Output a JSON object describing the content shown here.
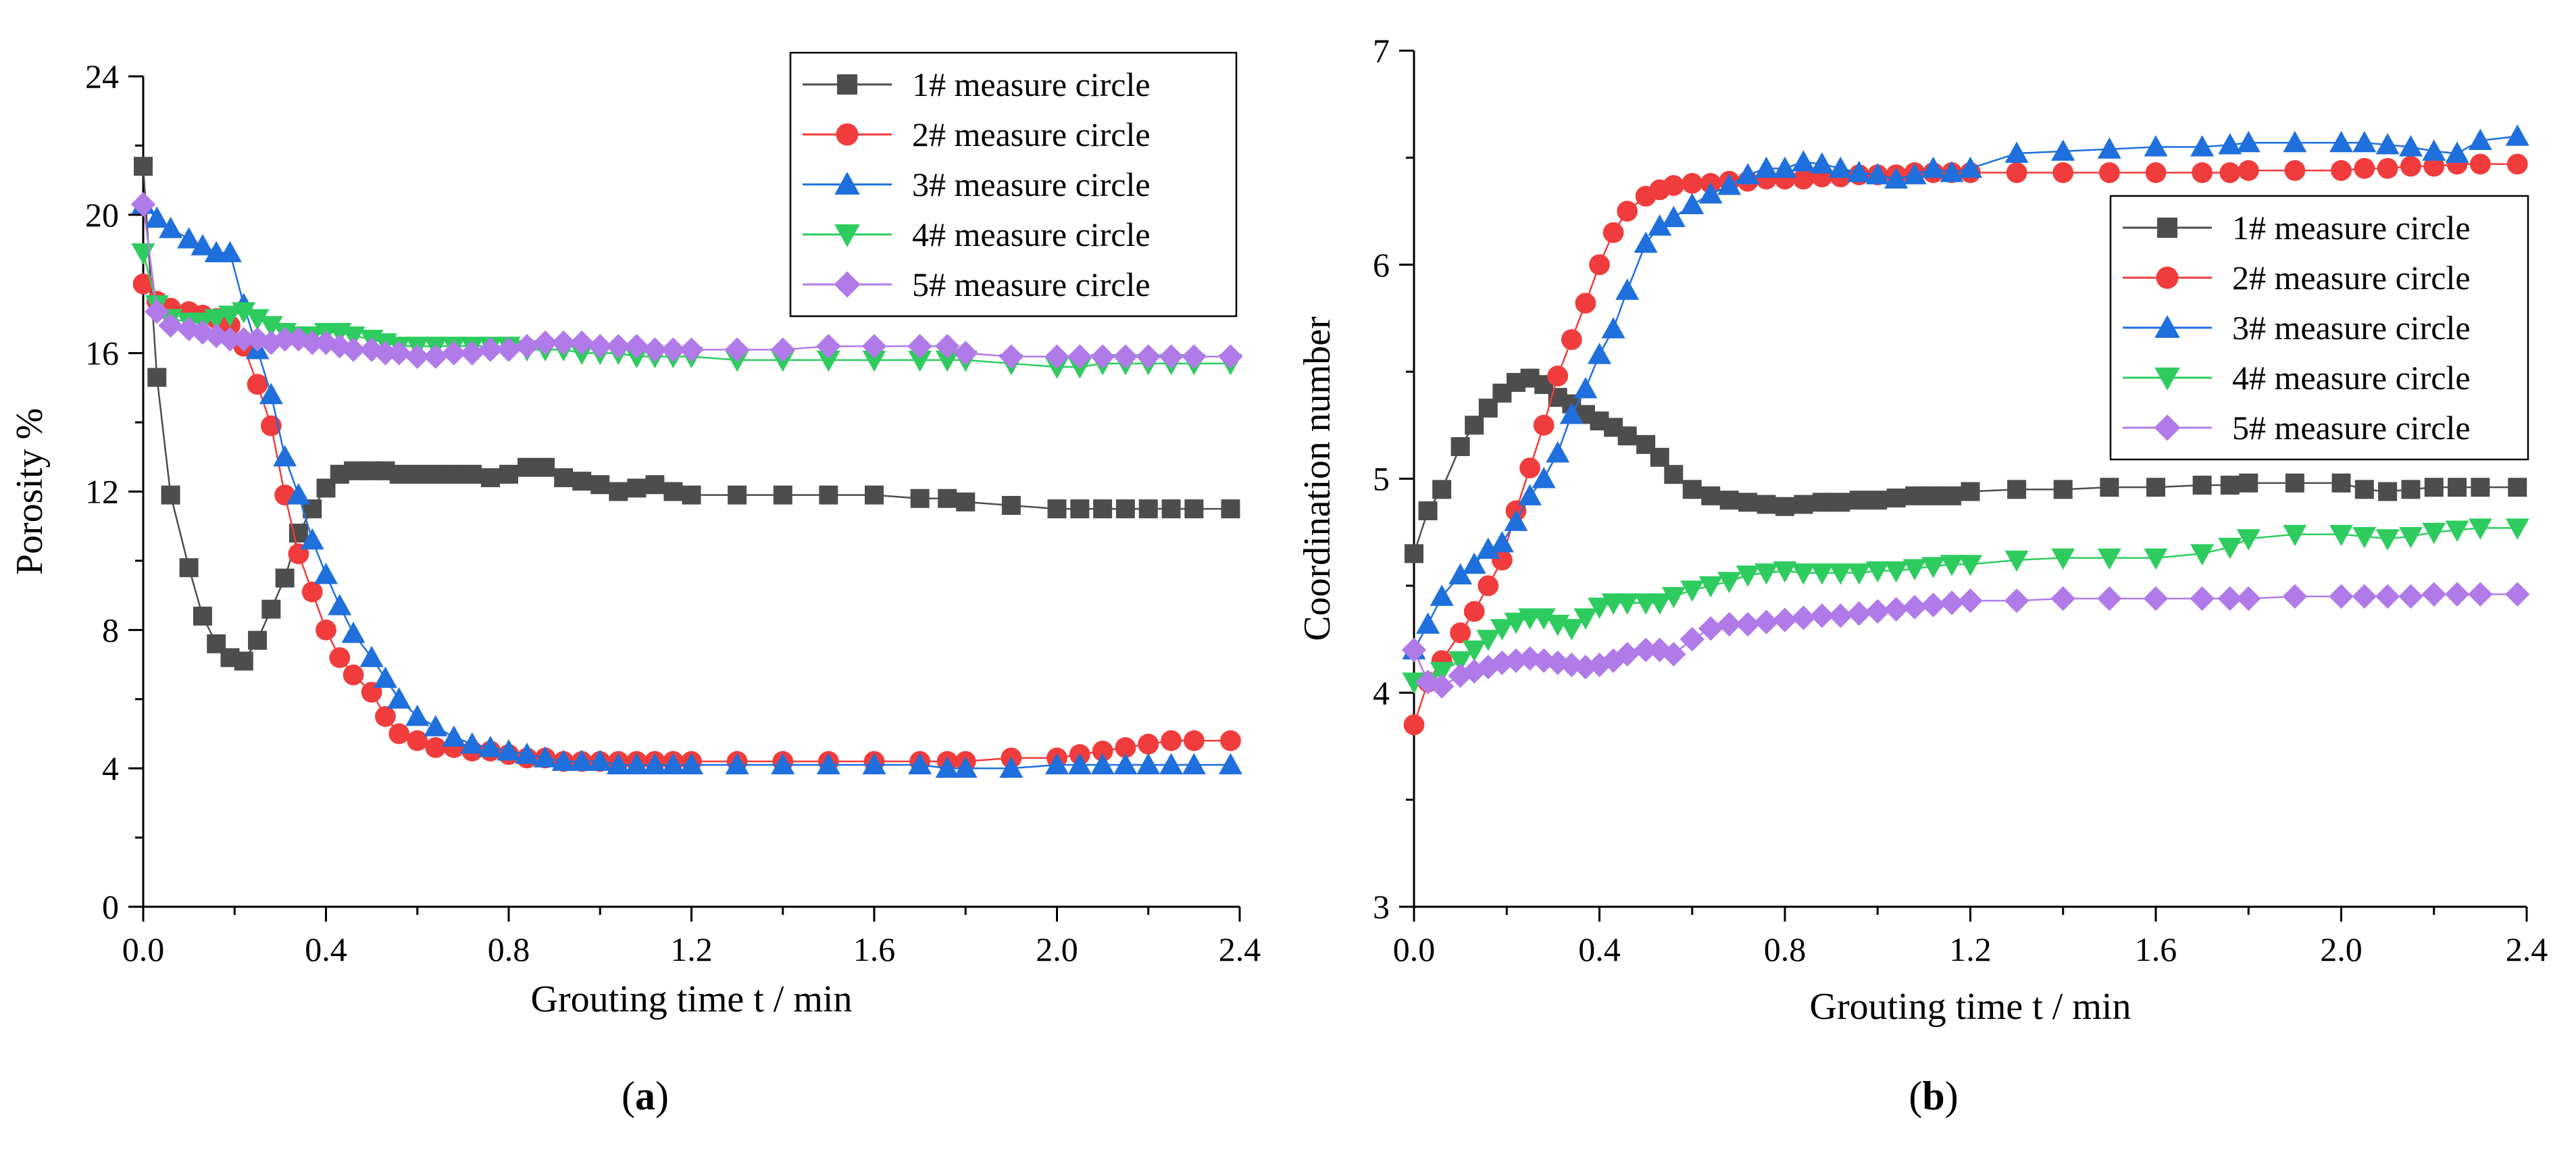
{
  "figure": {
    "x_var": "t",
    "x_unit": " / min",
    "x_prefix": "Grouting time "
  },
  "chart_data": [
    {
      "type": "line",
      "panel_label": "a",
      "title": "",
      "xlabel": "Grouting time t / min",
      "ylabel": "Porosity %",
      "xlim": [
        0,
        2.4
      ],
      "ylim": [
        0,
        24
      ],
      "xticks": [
        "0.0",
        "0.4",
        "0.8",
        "1.2",
        "1.6",
        "2.0",
        "2.4"
      ],
      "yticks": [
        "0",
        "4",
        "8",
        "12",
        "16",
        "20",
        "24"
      ],
      "grid": false,
      "legend_position": "top-right",
      "x": [
        0,
        0.03,
        0.06,
        0.1,
        0.13,
        0.16,
        0.19,
        0.22,
        0.25,
        0.28,
        0.31,
        0.34,
        0.37,
        0.4,
        0.43,
        0.46,
        0.5,
        0.53,
        0.56,
        0.6,
        0.64,
        0.68,
        0.72,
        0.76,
        0.8,
        0.84,
        0.88,
        0.92,
        0.96,
        1.0,
        1.04,
        1.08,
        1.12,
        1.16,
        1.2,
        1.3,
        1.4,
        1.5,
        1.6,
        1.7,
        1.76,
        1.8,
        1.9,
        2.0,
        2.05,
        2.1,
        2.15,
        2.2,
        2.25,
        2.3,
        2.38
      ],
      "series": [
        {
          "name": "1# measure circle",
          "marker": "square",
          "color": "#4d4d4d",
          "values": [
            21.4,
            15.3,
            11.9,
            9.8,
            8.4,
            7.6,
            7.2,
            7.1,
            7.7,
            8.6,
            9.5,
            10.8,
            11.5,
            12.1,
            12.5,
            12.6,
            12.6,
            12.6,
            12.5,
            12.5,
            12.5,
            12.5,
            12.5,
            12.4,
            12.5,
            12.7,
            12.7,
            12.4,
            12.3,
            12.2,
            12.0,
            12.1,
            12.2,
            12.0,
            11.9,
            11.9,
            11.9,
            11.9,
            11.9,
            11.8,
            11.8,
            11.7,
            11.6,
            11.5,
            11.5,
            11.5,
            11.5,
            11.5,
            11.5,
            11.5,
            11.5
          ]
        },
        {
          "name": "2# measure circle",
          "marker": "circle",
          "color": "#f03c3c",
          "values": [
            18.0,
            17.5,
            17.3,
            17.2,
            17.1,
            17.0,
            16.8,
            16.2,
            15.1,
            13.9,
            11.9,
            10.2,
            9.1,
            8.0,
            7.2,
            6.7,
            6.2,
            5.5,
            5.0,
            4.8,
            4.6,
            4.6,
            4.5,
            4.5,
            4.4,
            4.3,
            4.3,
            4.2,
            4.2,
            4.2,
            4.2,
            4.2,
            4.2,
            4.2,
            4.2,
            4.2,
            4.2,
            4.2,
            4.2,
            4.2,
            4.2,
            4.2,
            4.3,
            4.3,
            4.4,
            4.5,
            4.6,
            4.7,
            4.8,
            4.8,
            4.8
          ]
        },
        {
          "name": "3# measure circle",
          "marker": "triangle-up",
          "color": "#1f6fdc",
          "values": [
            20.3,
            19.9,
            19.6,
            19.3,
            19.1,
            18.9,
            18.9,
            17.4,
            16.1,
            14.8,
            13.0,
            11.9,
            10.6,
            9.6,
            8.7,
            7.9,
            7.2,
            6.6,
            6.0,
            5.5,
            5.2,
            4.9,
            4.7,
            4.6,
            4.5,
            4.4,
            4.3,
            4.2,
            4.2,
            4.2,
            4.1,
            4.1,
            4.1,
            4.1,
            4.1,
            4.1,
            4.1,
            4.1,
            4.1,
            4.1,
            4.0,
            4.0,
            4.0,
            4.1,
            4.1,
            4.1,
            4.1,
            4.1,
            4.1,
            4.1,
            4.1
          ]
        },
        {
          "name": "4# measure circle",
          "marker": "triangle-down",
          "color": "#2ecc5f",
          "values": [
            18.9,
            17.4,
            17.0,
            16.9,
            16.9,
            17.0,
            17.1,
            17.2,
            17.0,
            16.8,
            16.6,
            16.5,
            16.5,
            16.6,
            16.6,
            16.5,
            16.4,
            16.3,
            16.2,
            16.2,
            16.2,
            16.2,
            16.2,
            16.2,
            16.2,
            16.1,
            16.1,
            16.1,
            16.0,
            16.0,
            16.0,
            15.9,
            15.9,
            15.9,
            15.9,
            15.8,
            15.8,
            15.8,
            15.8,
            15.8,
            15.8,
            15.8,
            15.7,
            15.6,
            15.6,
            15.7,
            15.7,
            15.7,
            15.7,
            15.7,
            15.7
          ]
        },
        {
          "name": "5# measure circle",
          "marker": "diamond",
          "color": "#b07be8",
          "values": [
            20.3,
            17.2,
            16.8,
            16.7,
            16.6,
            16.5,
            16.4,
            16.4,
            16.4,
            16.3,
            16.4,
            16.4,
            16.3,
            16.3,
            16.2,
            16.1,
            16.1,
            16.0,
            16.0,
            15.9,
            15.9,
            16.0,
            16.0,
            16.1,
            16.1,
            16.2,
            16.3,
            16.3,
            16.3,
            16.2,
            16.2,
            16.2,
            16.1,
            16.1,
            16.1,
            16.1,
            16.1,
            16.2,
            16.2,
            16.2,
            16.2,
            16.0,
            15.9,
            15.9,
            15.9,
            15.9,
            15.9,
            15.9,
            15.9,
            15.9,
            15.9
          ]
        }
      ]
    },
    {
      "type": "line",
      "panel_label": "b",
      "title": "",
      "xlabel": "Grouting time t / min",
      "ylabel": "Coordination number",
      "xlim": [
        0,
        2.4
      ],
      "ylim": [
        3,
        7
      ],
      "xticks": [
        "0.0",
        "0.4",
        "0.8",
        "1.2",
        "1.6",
        "2.0",
        "2.4"
      ],
      "yticks": [
        "3",
        "4",
        "5",
        "6",
        "7"
      ],
      "grid": false,
      "legend_position": "right-middle",
      "x": [
        0,
        0.03,
        0.06,
        0.1,
        0.13,
        0.16,
        0.19,
        0.22,
        0.25,
        0.28,
        0.31,
        0.34,
        0.37,
        0.4,
        0.43,
        0.46,
        0.5,
        0.53,
        0.56,
        0.6,
        0.64,
        0.68,
        0.72,
        0.76,
        0.8,
        0.84,
        0.88,
        0.92,
        0.96,
        1.0,
        1.04,
        1.08,
        1.12,
        1.16,
        1.2,
        1.3,
        1.4,
        1.5,
        1.6,
        1.7,
        1.76,
        1.8,
        1.9,
        2.0,
        2.05,
        2.1,
        2.15,
        2.2,
        2.25,
        2.3,
        2.38
      ],
      "series": [
        {
          "name": "1# measure circle",
          "marker": "square",
          "color": "#4d4d4d",
          "values": [
            4.65,
            4.85,
            4.95,
            5.15,
            5.25,
            5.33,
            5.4,
            5.45,
            5.47,
            5.44,
            5.38,
            5.35,
            5.3,
            5.27,
            5.24,
            5.2,
            5.16,
            5.1,
            5.02,
            4.95,
            4.92,
            4.9,
            4.89,
            4.88,
            4.87,
            4.88,
            4.89,
            4.89,
            4.9,
            4.9,
            4.91,
            4.92,
            4.92,
            4.92,
            4.94,
            4.95,
            4.95,
            4.96,
            4.96,
            4.97,
            4.97,
            4.98,
            4.98,
            4.98,
            4.95,
            4.94,
            4.95,
            4.96,
            4.96,
            4.96,
            4.96
          ]
        },
        {
          "name": "2# measure circle",
          "marker": "circle",
          "color": "#f03c3c",
          "values": [
            3.85,
            4.05,
            4.15,
            4.28,
            4.38,
            4.5,
            4.62,
            4.85,
            5.05,
            5.25,
            5.48,
            5.65,
            5.82,
            6.0,
            6.15,
            6.25,
            6.32,
            6.35,
            6.37,
            6.38,
            6.38,
            6.39,
            6.39,
            6.4,
            6.4,
            6.4,
            6.41,
            6.41,
            6.42,
            6.42,
            6.42,
            6.43,
            6.43,
            6.43,
            6.43,
            6.43,
            6.43,
            6.43,
            6.43,
            6.43,
            6.43,
            6.44,
            6.44,
            6.44,
            6.45,
            6.45,
            6.46,
            6.46,
            6.47,
            6.47,
            6.47
          ]
        },
        {
          "name": "3# measure circle",
          "marker": "triangle-up",
          "color": "#1f6fdc",
          "values": [
            4.2,
            4.32,
            4.45,
            4.55,
            4.6,
            4.67,
            4.7,
            4.8,
            4.92,
            5.0,
            5.12,
            5.3,
            5.42,
            5.58,
            5.7,
            5.88,
            6.1,
            6.18,
            6.22,
            6.28,
            6.33,
            6.37,
            6.42,
            6.45,
            6.45,
            6.48,
            6.47,
            6.45,
            6.43,
            6.42,
            6.4,
            6.42,
            6.45,
            6.43,
            6.45,
            6.52,
            6.53,
            6.54,
            6.55,
            6.55,
            6.56,
            6.57,
            6.57,
            6.57,
            6.57,
            6.56,
            6.55,
            6.53,
            6.52,
            6.58,
            6.6
          ]
        },
        {
          "name": "4# measure circle",
          "marker": "triangle-down",
          "color": "#2ecc5f",
          "values": [
            4.05,
            4.05,
            4.1,
            4.15,
            4.2,
            4.25,
            4.3,
            4.33,
            4.35,
            4.35,
            4.32,
            4.3,
            4.35,
            4.4,
            4.42,
            4.42,
            4.42,
            4.42,
            4.45,
            4.48,
            4.5,
            4.52,
            4.55,
            4.56,
            4.57,
            4.56,
            4.56,
            4.56,
            4.56,
            4.57,
            4.57,
            4.58,
            4.59,
            4.6,
            4.6,
            4.62,
            4.63,
            4.63,
            4.63,
            4.65,
            4.68,
            4.72,
            4.74,
            4.74,
            4.73,
            4.72,
            4.73,
            4.75,
            4.76,
            4.77,
            4.77
          ]
        },
        {
          "name": "5# measure circle",
          "marker": "diamond",
          "color": "#b07be8",
          "values": [
            4.2,
            4.05,
            4.03,
            4.08,
            4.1,
            4.12,
            4.14,
            4.15,
            4.16,
            4.15,
            4.14,
            4.13,
            4.12,
            4.13,
            4.15,
            4.18,
            4.2,
            4.2,
            4.18,
            4.25,
            4.3,
            4.32,
            4.32,
            4.33,
            4.34,
            4.35,
            4.36,
            4.36,
            4.37,
            4.38,
            4.39,
            4.4,
            4.41,
            4.42,
            4.43,
            4.43,
            4.44,
            4.44,
            4.44,
            4.44,
            4.44,
            4.44,
            4.45,
            4.45,
            4.45,
            4.45,
            4.45,
            4.46,
            4.46,
            4.46,
            4.46
          ]
        }
      ]
    }
  ]
}
